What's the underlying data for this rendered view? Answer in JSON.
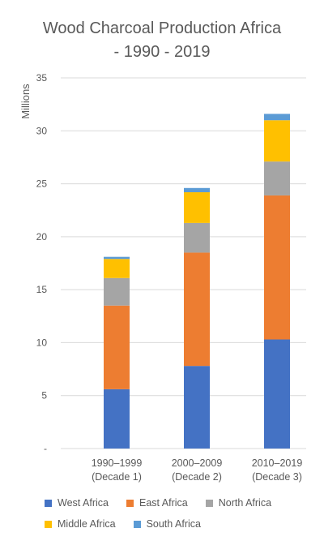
{
  "chart_data": {
    "type": "bar",
    "stacked": true,
    "title_line1": "Wood Charcoal Production Africa",
    "title_line2": "- 1990 - 2019",
    "ylabel": "Millions",
    "xlabel": "",
    "ylim": [
      0,
      35
    ],
    "yticks": [
      {
        "value": 0,
        "label": "-"
      },
      {
        "value": 5,
        "label": "5"
      },
      {
        "value": 10,
        "label": "10"
      },
      {
        "value": 15,
        "label": "15"
      },
      {
        "value": 20,
        "label": "20"
      },
      {
        "value": 25,
        "label": "25"
      },
      {
        "value": 30,
        "label": "30"
      },
      {
        "value": 35,
        "label": "35"
      }
    ],
    "grid": true,
    "legend_position": "bottom",
    "categories": [
      {
        "line1": "1990–1999",
        "line2": "(Decade 1)"
      },
      {
        "line1": "2000–2009",
        "line2": "(Decade 2)"
      },
      {
        "line1": "2010–2019",
        "line2": "(Decade 3)"
      }
    ],
    "series": [
      {
        "name": "West Africa",
        "color": "#4472C4",
        "values": [
          5.6,
          7.8,
          10.3
        ]
      },
      {
        "name": "East Africa",
        "color": "#ED7D31",
        "values": [
          7.9,
          10.7,
          13.6
        ]
      },
      {
        "name": "North Africa",
        "color": "#A5A5A5",
        "values": [
          2.6,
          2.8,
          3.2
        ]
      },
      {
        "name": "Middle Africa",
        "color": "#FFC000",
        "values": [
          1.8,
          2.9,
          3.9
        ]
      },
      {
        "name": "South Africa",
        "color": "#5B9BD5",
        "values": [
          0.2,
          0.4,
          0.6
        ]
      }
    ]
  }
}
